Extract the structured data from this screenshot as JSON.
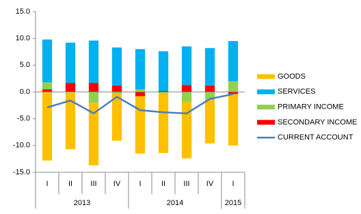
{
  "chart_data": {
    "type": "stacked-bar-line",
    "categories": [
      "I",
      "II",
      "III",
      "IV",
      "I",
      "II",
      "III",
      "IV",
      "I"
    ],
    "x_groups": [
      {
        "name": "2013",
        "count": 4
      },
      {
        "name": "2014",
        "count": 4
      },
      {
        "name": "2015",
        "count": 1
      }
    ],
    "series": [
      {
        "name": "GOODS",
        "color": "#ffc000",
        "values": [
          -12.8,
          -10.6,
          -11.7,
          -8.8,
          -10.7,
          -11.1,
          -10.6,
          -8.1,
          -9.6
        ]
      },
      {
        "name": "SERVICES",
        "color": "#00b0f0",
        "values": [
          8.0,
          7.5,
          7.9,
          7.1,
          7.5,
          7.4,
          7.2,
          7.0,
          7.5
        ]
      },
      {
        "name": "PRIMARY INCOME",
        "color": "#92d050",
        "values": [
          1.3,
          -0.1,
          -2.0,
          -0.3,
          0.5,
          -0.3,
          -1.8,
          -1.5,
          2.0
        ]
      },
      {
        "name": "SECONDARY INCOME",
        "color": "#ff0000",
        "values": [
          0.5,
          1.7,
          1.7,
          1.2,
          -0.8,
          0.2,
          1.3,
          1.2,
          -0.4
        ]
      },
      {
        "name": "CURRENT ACCOUNT",
        "color": "#4a7ebb",
        "type": "line",
        "values": [
          -2.9,
          -1.6,
          -4.0,
          -0.9,
          -3.4,
          -3.8,
          -4.0,
          -1.3,
          -0.4
        ]
      }
    ],
    "ylim": [
      -15,
      15
    ],
    "yticks": [
      {
        "value": -15,
        "label": "-15.0"
      },
      {
        "value": -10,
        "label": "-10.0"
      },
      {
        "value": -5,
        "label": "-5.0"
      },
      {
        "value": 0,
        "label": "0.0"
      },
      {
        "value": 5,
        "label": "5.0"
      },
      {
        "value": 10,
        "label": "10.0"
      },
      {
        "value": 15,
        "label": "15.0"
      }
    ],
    "grid": false,
    "legend": "right"
  }
}
